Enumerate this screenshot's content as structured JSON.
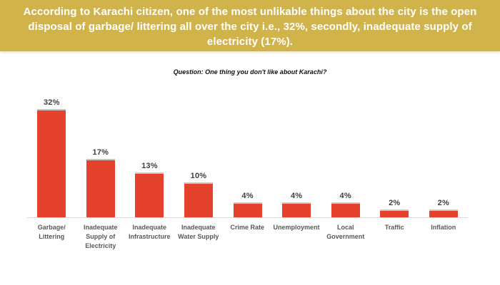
{
  "banner": {
    "text": "According to Karachi citizen, one of the most unlikable things about the city is the open disposal of garbage/ littering all over the city i.e., 32%, secondly, inadequate supply of electricity (17%).",
    "background_color": "#D1B34C",
    "text_color": "#FFFFFF"
  },
  "chart_data": {
    "type": "bar",
    "title": "Question: One thing you don't like about Karachi?",
    "categories": [
      "Garbage/ Littering",
      "Inadequate Supply of Electricity",
      "Inadequate Infrastructure",
      "Inadequate Water Supply",
      "Crime Rate",
      "Unemployment",
      "Local Government",
      "Traffic",
      "Inflation"
    ],
    "values": [
      32,
      17,
      13,
      10,
      4,
      4,
      4,
      2,
      2
    ],
    "value_labels": [
      "32%",
      "17%",
      "13%",
      "10%",
      "4%",
      "4%",
      "4%",
      "2%",
      "2%"
    ],
    "bar_color": "#E5422E",
    "bar_cap_color": "#C9C7C5",
    "axis_line_color": "#D9D9D9",
    "value_label_color": "#3F3F3F",
    "category_label_color": "#595959",
    "xlabel": "",
    "ylabel": "",
    "ylim": [
      0,
      34
    ],
    "grid": false,
    "legend": "none"
  }
}
